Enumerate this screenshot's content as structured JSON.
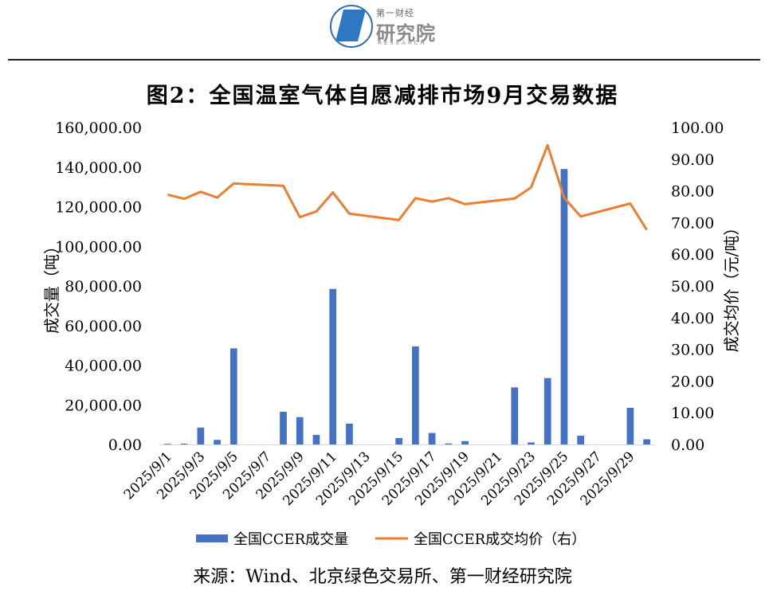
{
  "header": {
    "logo_small": "第一财经",
    "logo_big": "研究院",
    "logo_en": "RESEARCH"
  },
  "title": "图2：全国温室气体自愿减排市场9月交易数据",
  "source": "来源：Wind、北京绿色交易所、第一财经研究院",
  "colors": {
    "bar": "#4472c4",
    "line": "#ed7d31"
  },
  "chart_data": {
    "type": "bar+line",
    "categories": [
      "2025/9/1",
      "2025/9/2",
      "2025/9/3",
      "2025/9/4",
      "2025/9/5",
      "2025/9/8",
      "2025/9/9",
      "2025/9/10",
      "2025/9/11",
      "2025/9/12",
      "2025/9/15",
      "2025/9/16",
      "2025/9/17",
      "2025/9/18",
      "2025/9/19",
      "2025/9/22",
      "2025/9/23",
      "2025/9/24",
      "2025/9/25",
      "2025/9/26",
      "2025/9/29",
      "2025/9/30"
    ],
    "tick_labels": [
      "2025/9/1",
      "2025/9/3",
      "2025/9/5",
      "2025/9/7",
      "2025/9/9",
      "2025/9/11",
      "2025/9/13",
      "2025/9/15",
      "2025/9/17",
      "2025/9/19",
      "2025/9/21",
      "2025/9/23",
      "2025/9/25",
      "2025/9/27",
      "2025/9/29"
    ],
    "series": [
      {
        "name": "全国CCER成交量",
        "axis": "left",
        "type": "bar",
        "values": [
          300,
          400,
          8500,
          2300,
          48500,
          16500,
          13800,
          4800,
          78500,
          10500,
          3200,
          49500,
          5800,
          500,
          1700,
          28800,
          1000,
          33500,
          139000,
          4400,
          18500,
          2600
        ]
      },
      {
        "name": "全国CCER成交均价（右）",
        "axis": "right",
        "type": "line",
        "values": [
          78.8,
          77.5,
          79.7,
          77.9,
          82.3,
          81.6,
          71.7,
          73.5,
          79.5,
          72.8,
          70.8,
          77.7,
          76.6,
          77.7,
          75.8,
          77.6,
          81.1,
          94.4,
          77.8,
          71.9,
          76.0,
          67.7
        ]
      }
    ],
    "y_left": {
      "label": "成交量（吨）",
      "min": 0,
      "max": 160000,
      "ticks": [
        "0.00",
        "20,000.00",
        "40,000.00",
        "60,000.00",
        "80,000.00",
        "100,000.00",
        "120,000.00",
        "140,000.00",
        "160,000.00"
      ]
    },
    "y_right": {
      "label": "成交均价（元/吨）",
      "min": 0,
      "max": 100,
      "ticks": [
        "0.00",
        "10.00",
        "20.00",
        "30.00",
        "40.00",
        "50.00",
        "60.00",
        "70.00",
        "80.00",
        "90.00",
        "100.00"
      ]
    },
    "legend_position": "bottom",
    "grid": false
  }
}
